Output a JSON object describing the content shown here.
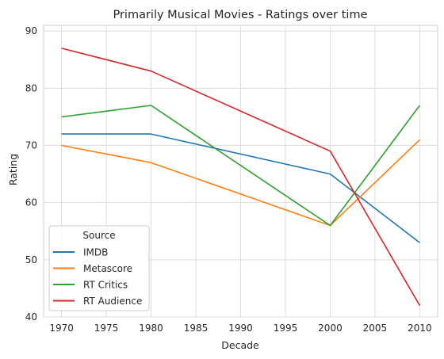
{
  "chart_data": {
    "type": "line",
    "title": "Primarily Musical Movies - Ratings over time",
    "xlabel": "Decade",
    "ylabel": "Rating",
    "x": [
      1970,
      1980,
      2000,
      2010
    ],
    "xlim": [
      1968,
      2012
    ],
    "ylim": [
      40,
      91
    ],
    "xticks": [
      1970,
      1975,
      1980,
      1985,
      1990,
      1995,
      2000,
      2005,
      2010
    ],
    "yticks": [
      40,
      50,
      60,
      70,
      80,
      90
    ],
    "grid": true,
    "legend": {
      "title": "Source",
      "placement": "lower-left"
    },
    "series": [
      {
        "name": "IMDB",
        "color": "#1f77b4",
        "values": [
          72,
          72,
          65,
          53
        ]
      },
      {
        "name": "Metascore",
        "color": "#ff7f0e",
        "values": [
          70,
          67,
          56,
          71
        ]
      },
      {
        "name": "RT Critics",
        "color": "#2ca02c",
        "values": [
          75,
          77,
          56,
          77
        ]
      },
      {
        "name": "RT Audience",
        "color": "#d62728",
        "values": [
          87,
          83,
          69,
          42
        ]
      }
    ]
  }
}
